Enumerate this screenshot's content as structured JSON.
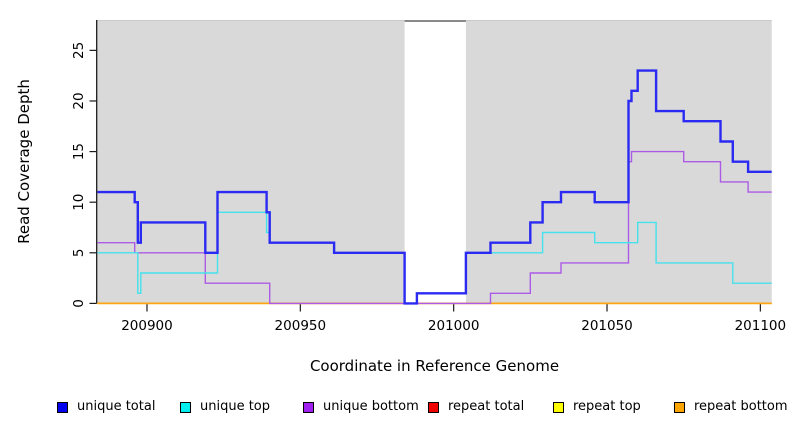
{
  "figure": {
    "x_axis_label": "Coordinate in Reference Genome",
    "y_axis_label": "Read Coverage Depth"
  },
  "legend": {
    "position": "bottom",
    "items": [
      {
        "label": "unique total",
        "color": "#0000EE"
      },
      {
        "label": "unique top",
        "color": "#00EEEE"
      },
      {
        "label": "unique bottom",
        "color": "#A020F0"
      },
      {
        "label": "repeat total",
        "color": "#EE0000"
      },
      {
        "label": "repeat top",
        "color": "#FFFF00"
      },
      {
        "label": "repeat bottom",
        "color": "#FFA500"
      }
    ]
  },
  "chart_data": {
    "type": "line",
    "step": true,
    "title": "",
    "xlabel": "Coordinate in Reference Genome",
    "ylabel": "Read Coverage Depth",
    "x_min": 200883.8,
    "x_max": 201103.7,
    "y_min": 0,
    "y_max": 28,
    "x_ticks": [
      200900,
      200950,
      201000,
      201050,
      201100
    ],
    "y_ticks": [
      0,
      5,
      10,
      15,
      20,
      25
    ],
    "grid": false,
    "legend_position": "bottom",
    "panel_bg": "#D9D9D9",
    "no_data_gap": [
      200984,
      201004
    ],
    "series": [
      {
        "name": "repeat total",
        "swatch": "#EE0000",
        "stroke": "#DD2222",
        "width": 1.2,
        "points": [
          [
            200883.8,
            0
          ]
        ]
      },
      {
        "name": "repeat top",
        "swatch": "#FFFF00",
        "stroke": "#FFE800",
        "width": 1.2,
        "points": [
          [
            200883.8,
            0
          ]
        ]
      },
      {
        "name": "repeat bottom",
        "swatch": "#FFA500",
        "stroke": "#FFA513",
        "width": 1.7,
        "points": [
          [
            200883.8,
            0
          ]
        ]
      },
      {
        "name": "unique bottom",
        "swatch": "#A020F0",
        "stroke": "#AC5BE6",
        "width": 1.4,
        "points": [
          [
            200883.8,
            6
          ],
          [
            200896,
            5
          ],
          [
            200919,
            2
          ],
          [
            200940,
            0
          ],
          [
            201012,
            1
          ],
          [
            201025,
            3
          ],
          [
            201035,
            4
          ],
          [
            201057,
            14
          ],
          [
            201058,
            15
          ],
          [
            201075,
            14
          ],
          [
            201087,
            12
          ],
          [
            201096,
            11
          ]
        ]
      },
      {
        "name": "unique top",
        "swatch": "#00EEEE",
        "stroke": "#44E2EC",
        "width": 1.4,
        "points": [
          [
            200883.8,
            5
          ],
          [
            200897,
            1
          ],
          [
            200898,
            3
          ],
          [
            200923,
            9
          ],
          [
            200939,
            7
          ],
          [
            200940,
            6
          ],
          [
            200961,
            5
          ],
          [
            200984,
            0
          ],
          [
            200988,
            1
          ],
          [
            201004,
            5
          ],
          [
            201029,
            7
          ],
          [
            201046,
            6
          ],
          [
            201060,
            8
          ],
          [
            201066,
            4
          ],
          [
            201091,
            2
          ]
        ]
      },
      {
        "name": "unique total",
        "swatch": "#0000EE",
        "stroke": "#2A2AF2",
        "width": 2.4,
        "points": [
          [
            200883.8,
            11
          ],
          [
            200896,
            10
          ],
          [
            200897,
            6
          ],
          [
            200898,
            8
          ],
          [
            200919,
            5
          ],
          [
            200923,
            11
          ],
          [
            200939,
            9
          ],
          [
            200940,
            6
          ],
          [
            200961,
            5
          ],
          [
            200984,
            0
          ],
          [
            200988,
            1
          ],
          [
            201004,
            5
          ],
          [
            201012,
            6
          ],
          [
            201025,
            8
          ],
          [
            201029,
            10
          ],
          [
            201035,
            11
          ],
          [
            201046,
            10
          ],
          [
            201057,
            20
          ],
          [
            201058,
            21
          ],
          [
            201060,
            23
          ],
          [
            201066,
            19
          ],
          [
            201075,
            18
          ],
          [
            201087,
            16
          ],
          [
            201091,
            14
          ],
          [
            201096,
            13
          ]
        ]
      }
    ]
  }
}
